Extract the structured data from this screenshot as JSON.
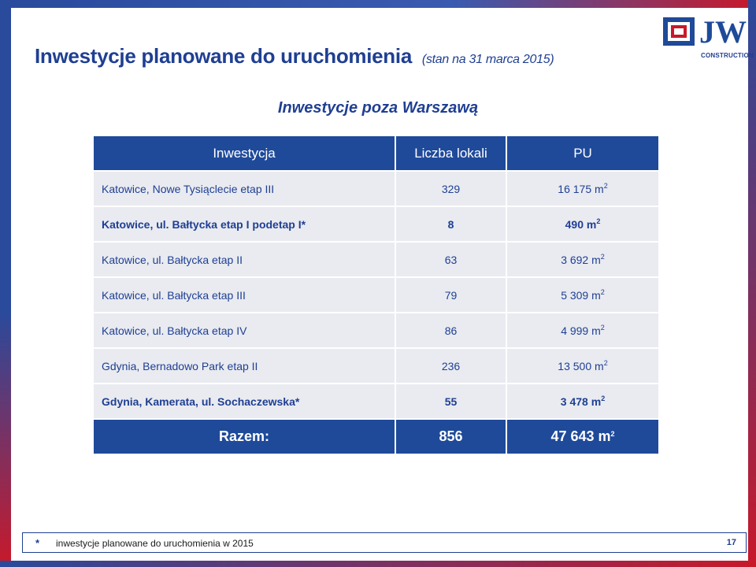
{
  "slide": {
    "title": "Inwestycje planowane do uruchomienia",
    "subtitle": "(stan na 31 marca 2015)",
    "section_heading": "Inwestycje poza Warszawą",
    "logo_text": "JW",
    "logo_subtext": "CONSTRUCTION",
    "brand_colors": {
      "primary": "#1f4a9a",
      "accent": "#c8192a"
    }
  },
  "table": {
    "headers": [
      "Inwestycja",
      "Liczba lokali",
      "PU"
    ],
    "unit_suffix": "m",
    "unit_power": "2",
    "rows": [
      {
        "name": "Katowice, Nowe Tysiąclecie etap III",
        "units": "329",
        "pu": "16 175",
        "bold": false
      },
      {
        "name": "Katowice, ul. Bałtycka etap I podetap I*",
        "units": "8",
        "pu": "490",
        "bold": true
      },
      {
        "name": "Katowice, ul. Bałtycka etap II",
        "units": "63",
        "pu": "3 692",
        "bold": false
      },
      {
        "name": "Katowice, ul. Bałtycka etap III",
        "units": "79",
        "pu": "5 309",
        "bold": false
      },
      {
        "name": "Katowice, ul. Bałtycka etap IV",
        "units": "86",
        "pu": "4 999",
        "bold": false
      },
      {
        "name": "Gdynia, Bernadowo Park etap II",
        "units": "236",
        "pu": "13 500",
        "bold": false
      },
      {
        "name": "Gdynia, Kamerata, ul. Sochaczewska*",
        "units": "55",
        "pu": "3 478",
        "bold": true
      }
    ],
    "total": {
      "label": "Razem:",
      "units": "856",
      "pu": "47 643"
    }
  },
  "footer": {
    "star": "*",
    "note": "inwestycje planowane do uruchomienia w 2015",
    "page_number": "17"
  }
}
